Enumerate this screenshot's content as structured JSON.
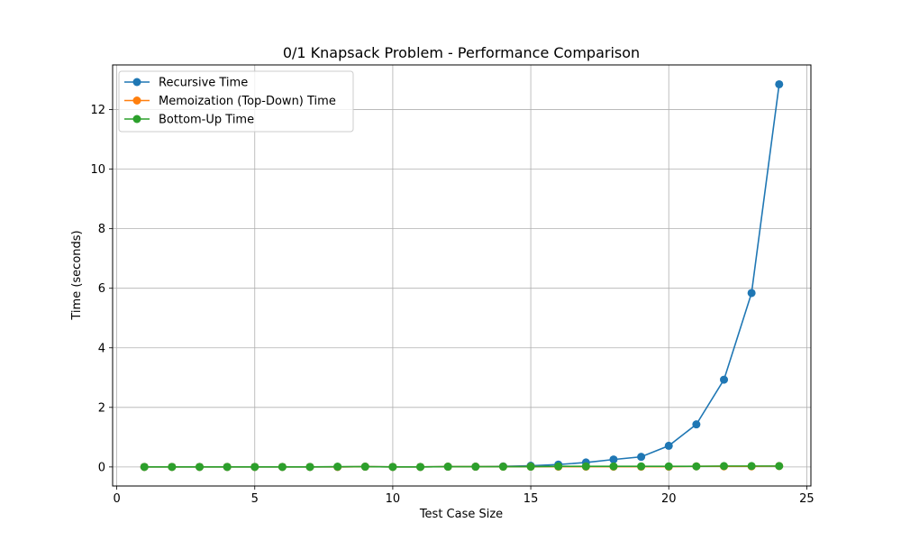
{
  "chart_data": {
    "type": "line",
    "title": "0/1 Knapsack Problem - Performance Comparison",
    "xlabel": "Test Case Size",
    "ylabel": "Time (seconds)",
    "xlim": [
      -0.15,
      25.15
    ],
    "ylim": [
      -0.64,
      13.5
    ],
    "xticks": [
      0,
      5,
      10,
      15,
      20,
      25
    ],
    "yticks": [
      0,
      2,
      4,
      6,
      8,
      10,
      12
    ],
    "grid": true,
    "legend_position": "top-left",
    "x": [
      1,
      2,
      3,
      4,
      5,
      6,
      7,
      8,
      9,
      10,
      11,
      12,
      13,
      14,
      15,
      16,
      17,
      18,
      19,
      20,
      21,
      22,
      23,
      24
    ],
    "series": [
      {
        "name": "Recursive Time",
        "color": "#1f77b4",
        "marker": "circle",
        "values": [
          0.0,
          0.0,
          0.0,
          0.0,
          0.0,
          0.0,
          0.0,
          0.0,
          0.01,
          0.0,
          0.0,
          0.01,
          0.01,
          0.02,
          0.04,
          0.08,
          0.15,
          0.25,
          0.34,
          0.71,
          1.43,
          2.93,
          5.84,
          12.85
        ]
      },
      {
        "name": "Memoization (Top-Down) Time",
        "color": "#ff7f0e",
        "marker": "circle",
        "values": [
          0.0,
          0.0,
          0.0,
          0.0,
          0.0,
          0.0,
          0.0,
          0.0,
          0.01,
          0.0,
          0.0,
          0.01,
          0.01,
          0.01,
          0.01,
          0.01,
          0.01,
          0.01,
          0.01,
          0.01,
          0.02,
          0.02,
          0.02,
          0.03
        ]
      },
      {
        "name": "Bottom-Up Time",
        "color": "#2ca02c",
        "marker": "circle",
        "values": [
          0.0,
          0.0,
          0.0,
          0.0,
          0.0,
          0.0,
          0.0,
          0.01,
          0.01,
          0.0,
          0.0,
          0.01,
          0.01,
          0.01,
          0.01,
          0.02,
          0.02,
          0.02,
          0.02,
          0.02,
          0.02,
          0.03,
          0.03,
          0.03
        ]
      }
    ]
  }
}
